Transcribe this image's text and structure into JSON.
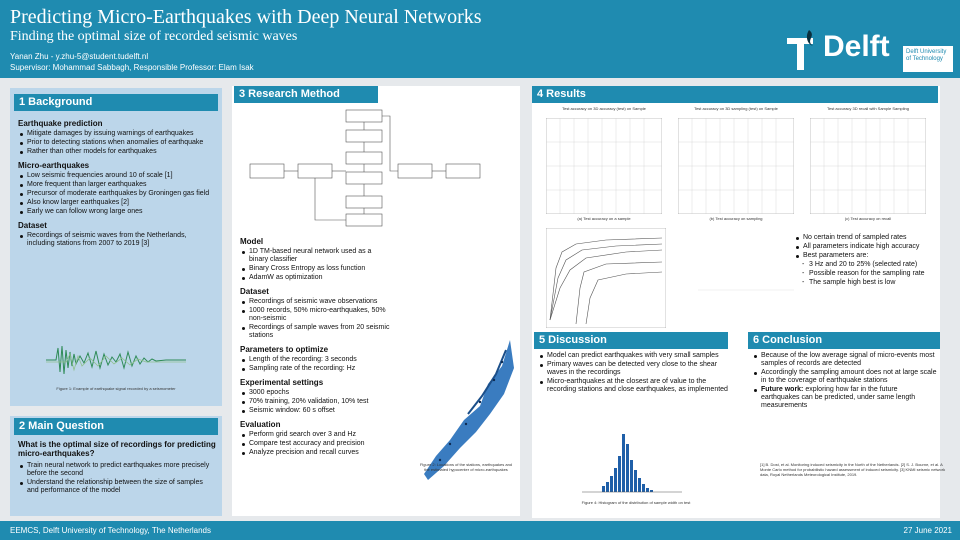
{
  "header": {
    "title": "Predicting Micro-Earthquakes with Deep Neural Networks",
    "subtitle": "Finding the optimal size of recorded seismic waves",
    "author": "Yanan Zhu - y.zhu-5@student.tudelft.nl",
    "supervisor": "Supervisor: Mohammad Sabbagh, Responsible Professor: Elam Isak",
    "logo_word": "Delft",
    "logo_tag": "Delft University of Technology"
  },
  "background": {
    "heading": "1 Background",
    "s1_title": "Earthquake prediction",
    "s1_items": [
      "Mitigate damages by issuing warnings of earthquakes",
      "Prior to detecting stations when anomalies of earthquake",
      "Rather than other models for earthquakes"
    ],
    "s2_title": "Micro-earthquakes",
    "s2_items": [
      "Low seismic frequencies around 10 of scale [1]",
      "More frequent than larger earthquakes",
      "Precursor of moderate earthquakes by Groningen gas field",
      "Also know larger earthquakes [2]",
      "Early we can follow wrong large ones"
    ],
    "s3_title": "Dataset",
    "s3_items": [
      "Recordings of seismic waves from the Netherlands, including stations from 2007 to 2019 [3]"
    ],
    "caption": "Figure 1: Example of earthquake signal recorded by a seismometer"
  },
  "main_question": {
    "heading": "2 Main Question",
    "question": "What is the optimal size of recordings for predicting micro-earthquakes?",
    "items": [
      "Train neural network to predict earthquakes more precisely before the second",
      "Understand the relationship between the size of samples and performance of the model"
    ]
  },
  "method": {
    "heading": "3 Research Method",
    "model_title": "Model",
    "model_items": [
      "1D TM-based neural network used as a binary classifier",
      "Binary Cross Entropy as loss function",
      "AdamW as optimization"
    ],
    "dataset_title": "Dataset",
    "dataset_items": [
      "Recordings of seismic wave observations",
      "1000 records, 50% micro-earthquakes, 50% non-seismic",
      "Recordings of sample waves from 20 seismic stations"
    ],
    "params_title": "Parameters to optimize",
    "params_items": [
      "Length of the recording: 3 seconds",
      "Sampling rate of the recording: Hz"
    ],
    "exp_title": "Experimental settings",
    "exp_items": [
      "3000 epochs",
      "70% training, 20% validation, 10% test",
      "Seismic window: 60 s offset"
    ],
    "eval_title": "Evaluation",
    "eval_items": [
      "Perform grid search over 3 and Hz",
      "Compare test accuracy and precision",
      "Analyze precision and recall curves"
    ],
    "map_caption": "Figure 2: Locations of the stations, earthquakes and the estimated hypocenter of micro-earthquakes"
  },
  "results": {
    "heading": "4 Results",
    "chart_titles": [
      "Test accuracy on 3D accuracy (test) on Sample",
      "Test accuracy on 3D sampling (test) on Sample",
      "Test accuracy 3D recall with Sample Sampling"
    ],
    "chart_captions": [
      "(a) Test accuracy on a sample",
      "(b) Test accuracy on sampling",
      "(c) Test accuracy on recall"
    ],
    "items": [
      "No certain trend of sampled rates",
      "All parameters indicate high accuracy",
      "Best parameters are:"
    ],
    "sub_items": [
      "3 Hz and 20 to 25% (selected rate)",
      "Possible reason for the sampling rate",
      "The sample high best is low"
    ]
  },
  "discussion": {
    "heading": "5 Discussion",
    "items": [
      "Model can predict earthquakes with very small samples",
      "Primary waves can be detected very close to the shear waves in the recordings",
      "Micro-earthquakes at the closest are of value to the recording stations and close earthquakes, as implemented"
    ],
    "caption": "Figure 4: Histogram of the distribution of sample width on test"
  },
  "conclusion": {
    "heading": "6 Conclusion",
    "items": [
      "Because of the low average signal of micro-events most samples of records are detected",
      "Accordingly the sampling amount does not at large scale in to the coverage of earthquake stations"
    ],
    "future_label": "Future work:",
    "future_text": "exploring how far in the future earthquakes can be predicted, under same length measurements"
  },
  "references": "[1] B. Dost, et al. Monitoring induced seismicity in the North of the Netherlands. [2] S. J. Bourne, et al. A Monte Carlo method for probabilistic hazard assessment of induced seismicity. [3] KNMI seismic network data, Royal Netherlands Meteorological Institute, 2019.",
  "footer": {
    "left": "EEMCS, Delft University of Technology, The Netherlands",
    "right": "27 June 2021"
  }
}
